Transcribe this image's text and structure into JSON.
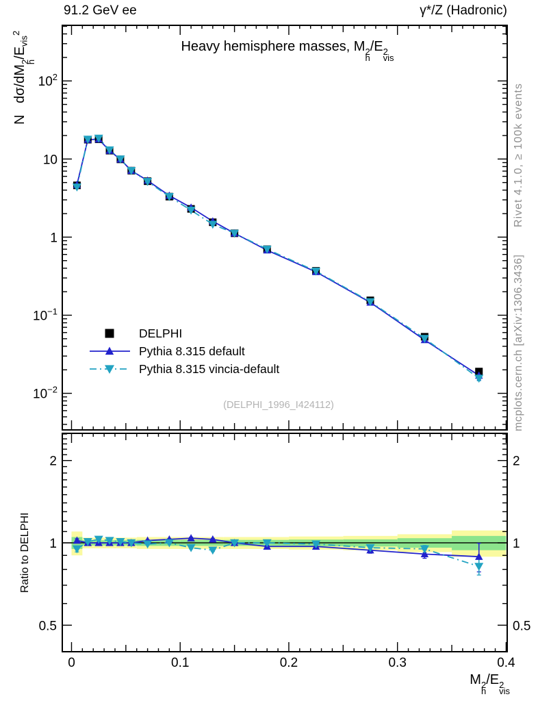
{
  "header": {
    "left": "91.2 GeV ee",
    "right": "γ*/Z (Hadronic)"
  },
  "side_notes": {
    "top": "Rivet 4.1.0, ≥ 100k events",
    "bottom": "mcplots.cern.ch [arXiv:1306.3436]"
  },
  "watermark": "(DELPHI_1996_I424112)",
  "ratio_ylabel": "Ratio to DELPHI",
  "title_parts": [
    {
      "t": "Heavy hemisphere masses, M"
    },
    {
      "sup": "2",
      "sub": "h"
    },
    {
      "t": "/E"
    },
    {
      "sup": "2",
      "sub": "vis"
    }
  ],
  "ylabel_parts": [
    {
      "t": "N   dσ/dM"
    },
    {
      "sup": "2",
      "sub": "h"
    },
    {
      "t": "/E"
    },
    {
      "sub": "vis"
    },
    {
      "sup": "2"
    }
  ],
  "xlabel_parts": [
    {
      "t": "M"
    },
    {
      "sup": "2",
      "sub": "h"
    },
    {
      "t": "/E"
    },
    {
      "sup": "2",
      "sub": "vis"
    }
  ],
  "chart_data": {
    "type": "line",
    "title": "Heavy hemisphere masses, M_h^2/E_vis^2",
    "xlabel": "M_h^2/E_vis^2",
    "ylabel": "N dsigma/dM_h^2/E_vis^2",
    "x_axis": {
      "min": -0.0085,
      "max": 0.401,
      "major_ticks": [
        0,
        0.1,
        0.2,
        0.3,
        0.4
      ],
      "tick_labels": [
        "0",
        "0.1",
        "0.2",
        "0.3",
        "0.4"
      ],
      "medium_step": 0.05,
      "minor_step": 0.01
    },
    "y_axis": {
      "scale": "log",
      "min": 0.0034,
      "max": 515,
      "tick_labels": [
        {
          "v": 100,
          "base": "10",
          "exp": "2"
        },
        {
          "v": 10,
          "base": "10",
          "exp": ""
        },
        {
          "v": 1,
          "base": "1",
          "exp": ""
        },
        {
          "v": 0.1,
          "base": "10",
          "exp": "−1"
        },
        {
          "v": 0.01,
          "base": "10",
          "exp": "−2"
        }
      ]
    },
    "ratio_axis": {
      "scale": "log",
      "min": 0.4,
      "max": 2.514,
      "tick_labels": [
        {
          "v": 2,
          "label": "2"
        },
        {
          "v": 1,
          "label": "1"
        },
        {
          "v": 0.5,
          "label": "0.5"
        }
      ],
      "ref_value": 1
    },
    "bin_edges": [
      0,
      0.01,
      0.02,
      0.03,
      0.04,
      0.05,
      0.06,
      0.08,
      0.1,
      0.12,
      0.14,
      0.16,
      0.2,
      0.25,
      0.3,
      0.35,
      0.4
    ],
    "x_centers": [
      0.005,
      0.015,
      0.025,
      0.035,
      0.045,
      0.055,
      0.07,
      0.09,
      0.11,
      0.13,
      0.15,
      0.18,
      0.225,
      0.275,
      0.325,
      0.375
    ],
    "series": [
      {
        "name": "DELPHI",
        "role": "data",
        "marker": "square",
        "color": "#000000",
        "line": "none",
        "values": [
          4.6,
          17.7,
          17.9,
          12.8,
          9.9,
          7.1,
          5.2,
          3.3,
          2.3,
          1.55,
          1.12,
          0.7,
          0.37,
          0.155,
          0.053,
          0.019
        ],
        "err_frac": [
          0.04,
          0.012,
          0.012,
          0.012,
          0.012,
          0.012,
          0.012,
          0.012,
          0.012,
          0.015,
          0.015,
          0.015,
          0.02,
          0.025,
          0.04,
          0.09
        ]
      },
      {
        "name": "Pythia 8.315 default",
        "role": "mc",
        "marker": "triangle-up",
        "color": "#2222cc",
        "line": "solid",
        "ratio": [
          1.02,
          1.0,
          1.0,
          1.0,
          1.0,
          1.0,
          1.02,
          1.03,
          1.04,
          1.03,
          1.0,
          0.97,
          0.97,
          0.94,
          0.91,
          0.89
        ],
        "err_frac": [
          0.015,
          0.006,
          0.006,
          0.006,
          0.006,
          0.006,
          0.006,
          0.006,
          0.008,
          0.008,
          0.009,
          0.009,
          0.012,
          0.025,
          0.035,
          0.12
        ]
      },
      {
        "name": "Pythia 8.315 vincia-default",
        "role": "mc",
        "marker": "triangle-down",
        "color": "#22a3c2",
        "line": "dashdot",
        "ratio": [
          0.95,
          1.01,
          1.03,
          1.02,
          1.01,
          1.0,
          0.99,
          1.0,
          0.96,
          0.94,
          1.0,
          1.0,
          0.99,
          0.96,
          0.95,
          0.82
        ],
        "err_frac": [
          0.025,
          0.008,
          0.008,
          0.008,
          0.008,
          0.008,
          0.008,
          0.008,
          0.01,
          0.01,
          0.01,
          0.01,
          0.013,
          0.025,
          0.03,
          0.07
        ]
      }
    ],
    "uncertainty_bands": {
      "color_outer": "#fafaa0",
      "color_inner": "#8ce48c",
      "outer_frac": [
        0.1,
        0.045,
        0.045,
        0.045,
        0.045,
        0.045,
        0.05,
        0.05,
        0.05,
        0.05,
        0.05,
        0.05,
        0.055,
        0.06,
        0.075,
        0.11
      ],
      "inner_frac": [
        0.05,
        0.022,
        0.022,
        0.022,
        0.022,
        0.022,
        0.025,
        0.025,
        0.025,
        0.025,
        0.025,
        0.025,
        0.028,
        0.03,
        0.04,
        0.06
      ]
    },
    "legend_position": "middle-left"
  }
}
